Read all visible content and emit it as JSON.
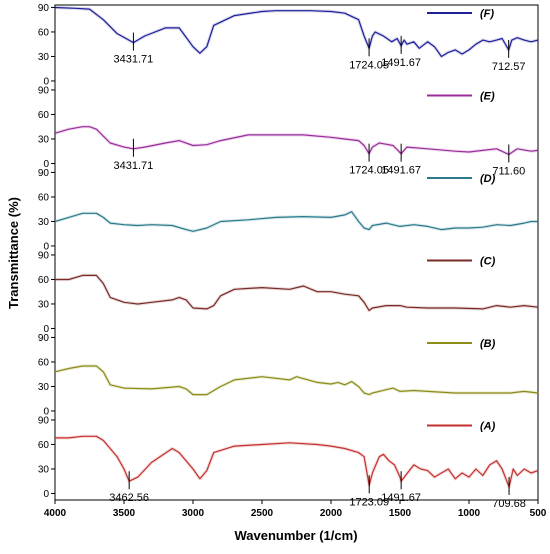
{
  "chart_data": {
    "type": "line",
    "xlabel": "Wavenumber (1/cm)",
    "ylabel": "Transmittance  (%)",
    "x_ticks": [
      4000,
      3500,
      3000,
      2500,
      2000,
      1500,
      1000,
      500
    ],
    "xlim": [
      4000,
      500
    ],
    "y_ticks": [
      0,
      30,
      60,
      90
    ],
    "ylim": [
      -8,
      93
    ],
    "series": [
      {
        "name": "(F)",
        "color": "#1f1f99",
        "x": [
          4000,
          3850,
          3750,
          3650,
          3550,
          3431.71,
          3350,
          3200,
          3100,
          3000,
          2950,
          2900,
          2850,
          2700,
          2500,
          2400,
          2300,
          2150,
          2000,
          1900,
          1800,
          1760,
          1724.05,
          1700,
          1680,
          1620,
          1560,
          1520,
          1491.67,
          1470,
          1450,
          1400,
          1360,
          1300,
          1250,
          1200,
          1150,
          1100,
          1050,
          1000,
          950,
          900,
          850,
          800,
          760,
          712.57,
          690,
          650,
          600,
          550,
          500
        ],
        "values": [
          90,
          89,
          88,
          75,
          58,
          47,
          55,
          65,
          65,
          42,
          34,
          42,
          68,
          80,
          85,
          86,
          86,
          86,
          85,
          83,
          75,
          55,
          40,
          55,
          60,
          55,
          48,
          52,
          43,
          50,
          45,
          48,
          40,
          48,
          42,
          30,
          35,
          38,
          33,
          38,
          45,
          50,
          48,
          50,
          52,
          38,
          50,
          53,
          50,
          48,
          50
        ]
      },
      {
        "name": "(E)",
        "color": "#9b2d9b",
        "x": [
          4000,
          3900,
          3800,
          3750,
          3700,
          3600,
          3500,
          3431.71,
          3350,
          3200,
          3100,
          3000,
          2900,
          2800,
          2600,
          2400,
          2200,
          2000,
          1900,
          1800,
          1760,
          1724.05,
          1700,
          1650,
          1550,
          1491.67,
          1450,
          1300,
          1100,
          1000,
          900,
          800,
          711.6,
          650,
          550,
          500
        ],
        "values": [
          37,
          42,
          45,
          45,
          42,
          25,
          20,
          18,
          20,
          25,
          28,
          22,
          23,
          28,
          35,
          35,
          35,
          32,
          30,
          28,
          22,
          12,
          20,
          25,
          22,
          12,
          20,
          18,
          15,
          14,
          16,
          18,
          11,
          18,
          15,
          16
        ]
      },
      {
        "name": "(D)",
        "color": "#2a7a8c",
        "x": [
          4000,
          3900,
          3800,
          3700,
          3650,
          3600,
          3500,
          3400,
          3300,
          3150,
          3050,
          3000,
          2900,
          2800,
          2600,
          2400,
          2200,
          2000,
          1900,
          1850,
          1800,
          1760,
          1724,
          1700,
          1600,
          1500,
          1400,
          1300,
          1200,
          1100,
          1000,
          900,
          800,
          700,
          600,
          550,
          500
        ],
        "values": [
          30,
          35,
          40,
          40,
          35,
          28,
          26,
          25,
          26,
          25,
          20,
          18,
          22,
          30,
          32,
          35,
          36,
          35,
          38,
          42,
          30,
          22,
          20,
          25,
          28,
          24,
          26,
          24,
          20,
          22,
          22,
          23,
          26,
          25,
          28,
          30,
          30
        ]
      },
      {
        "name": "(C)",
        "color": "#7a2b26",
        "x": [
          4000,
          3900,
          3800,
          3700,
          3650,
          3600,
          3500,
          3400,
          3300,
          3150,
          3100,
          3050,
          3000,
          2900,
          2850,
          2800,
          2700,
          2500,
          2300,
          2200,
          2100,
          2000,
          1900,
          1800,
          1760,
          1724,
          1700,
          1600,
          1500,
          1450,
          1300,
          1100,
          900,
          800,
          700,
          600,
          500
        ],
        "values": [
          60,
          60,
          65,
          65,
          55,
          38,
          32,
          30,
          32,
          35,
          38,
          35,
          25,
          24,
          28,
          40,
          48,
          50,
          48,
          52,
          45,
          45,
          42,
          40,
          32,
          22,
          25,
          28,
          28,
          26,
          25,
          25,
          24,
          28,
          26,
          28,
          26
        ]
      },
      {
        "name": "(B)",
        "color": "#8c8c17",
        "x": [
          4000,
          3900,
          3800,
          3700,
          3650,
          3600,
          3500,
          3300,
          3100,
          3050,
          3000,
          2900,
          2800,
          2700,
          2500,
          2300,
          2250,
          2100,
          2000,
          1950,
          1900,
          1850,
          1800,
          1760,
          1724,
          1700,
          1600,
          1550,
          1500,
          1400,
          1300,
          1100,
          900,
          700,
          600,
          500
        ],
        "values": [
          48,
          52,
          55,
          55,
          48,
          32,
          28,
          27,
          30,
          27,
          20,
          20,
          30,
          38,
          42,
          38,
          42,
          35,
          33,
          35,
          32,
          36,
          30,
          22,
          20,
          22,
          26,
          28,
          24,
          25,
          24,
          22,
          22,
          22,
          24,
          22
        ]
      },
      {
        "name": "(A)",
        "color": "#c4302f",
        "x": [
          4000,
          3900,
          3800,
          3700,
          3650,
          3600,
          3550,
          3500,
          3462.56,
          3400,
          3300,
          3150,
          3100,
          3000,
          2950,
          2900,
          2850,
          2700,
          2500,
          2300,
          2100,
          2000,
          1900,
          1800,
          1760,
          1723.09,
          1700,
          1650,
          1620,
          1580,
          1540,
          1500,
          1491.67,
          1460,
          1400,
          1350,
          1300,
          1250,
          1200,
          1150,
          1100,
          1050,
          1000,
          950,
          900,
          850,
          800,
          760,
          709.68,
          680,
          650,
          600,
          550,
          500
        ],
        "values": [
          68,
          68,
          70,
          70,
          65,
          55,
          45,
          30,
          15,
          20,
          38,
          55,
          50,
          30,
          18,
          28,
          50,
          58,
          60,
          62,
          60,
          58,
          55,
          50,
          45,
          10,
          25,
          45,
          48,
          40,
          35,
          20,
          15,
          22,
          35,
          30,
          28,
          20,
          25,
          30,
          18,
          25,
          20,
          30,
          22,
          35,
          40,
          30,
          8,
          30,
          22,
          30,
          25,
          28
        ]
      }
    ],
    "annotations": [
      {
        "series": "(F)",
        "x": 3431.71,
        "label": "3431.71"
      },
      {
        "series": "(F)",
        "x": 1724.05,
        "label": "1724.05"
      },
      {
        "series": "(F)",
        "x": 1491.67,
        "label": "1491.67"
      },
      {
        "series": "(F)",
        "x": 712.57,
        "label": "712.57"
      },
      {
        "series": "(E)",
        "x": 3431.71,
        "label": "3431.71"
      },
      {
        "series": "(E)",
        "x": 1724.05,
        "label": "1724.05"
      },
      {
        "series": "(E)",
        "x": 1491.67,
        "label": "1491.67"
      },
      {
        "series": "(E)",
        "x": 711.6,
        "label": "711.60"
      },
      {
        "series": "(A)",
        "x": 3462.56,
        "label": "3462.56"
      },
      {
        "series": "(A)",
        "x": 1723.09,
        "label": "1723.09"
      },
      {
        "series": "(A)",
        "x": 1491.67,
        "label": "1491.67"
      },
      {
        "series": "(A)",
        "x": 709.68,
        "label": "709.68"
      }
    ],
    "grid": false,
    "legend": "per-panel, right"
  }
}
